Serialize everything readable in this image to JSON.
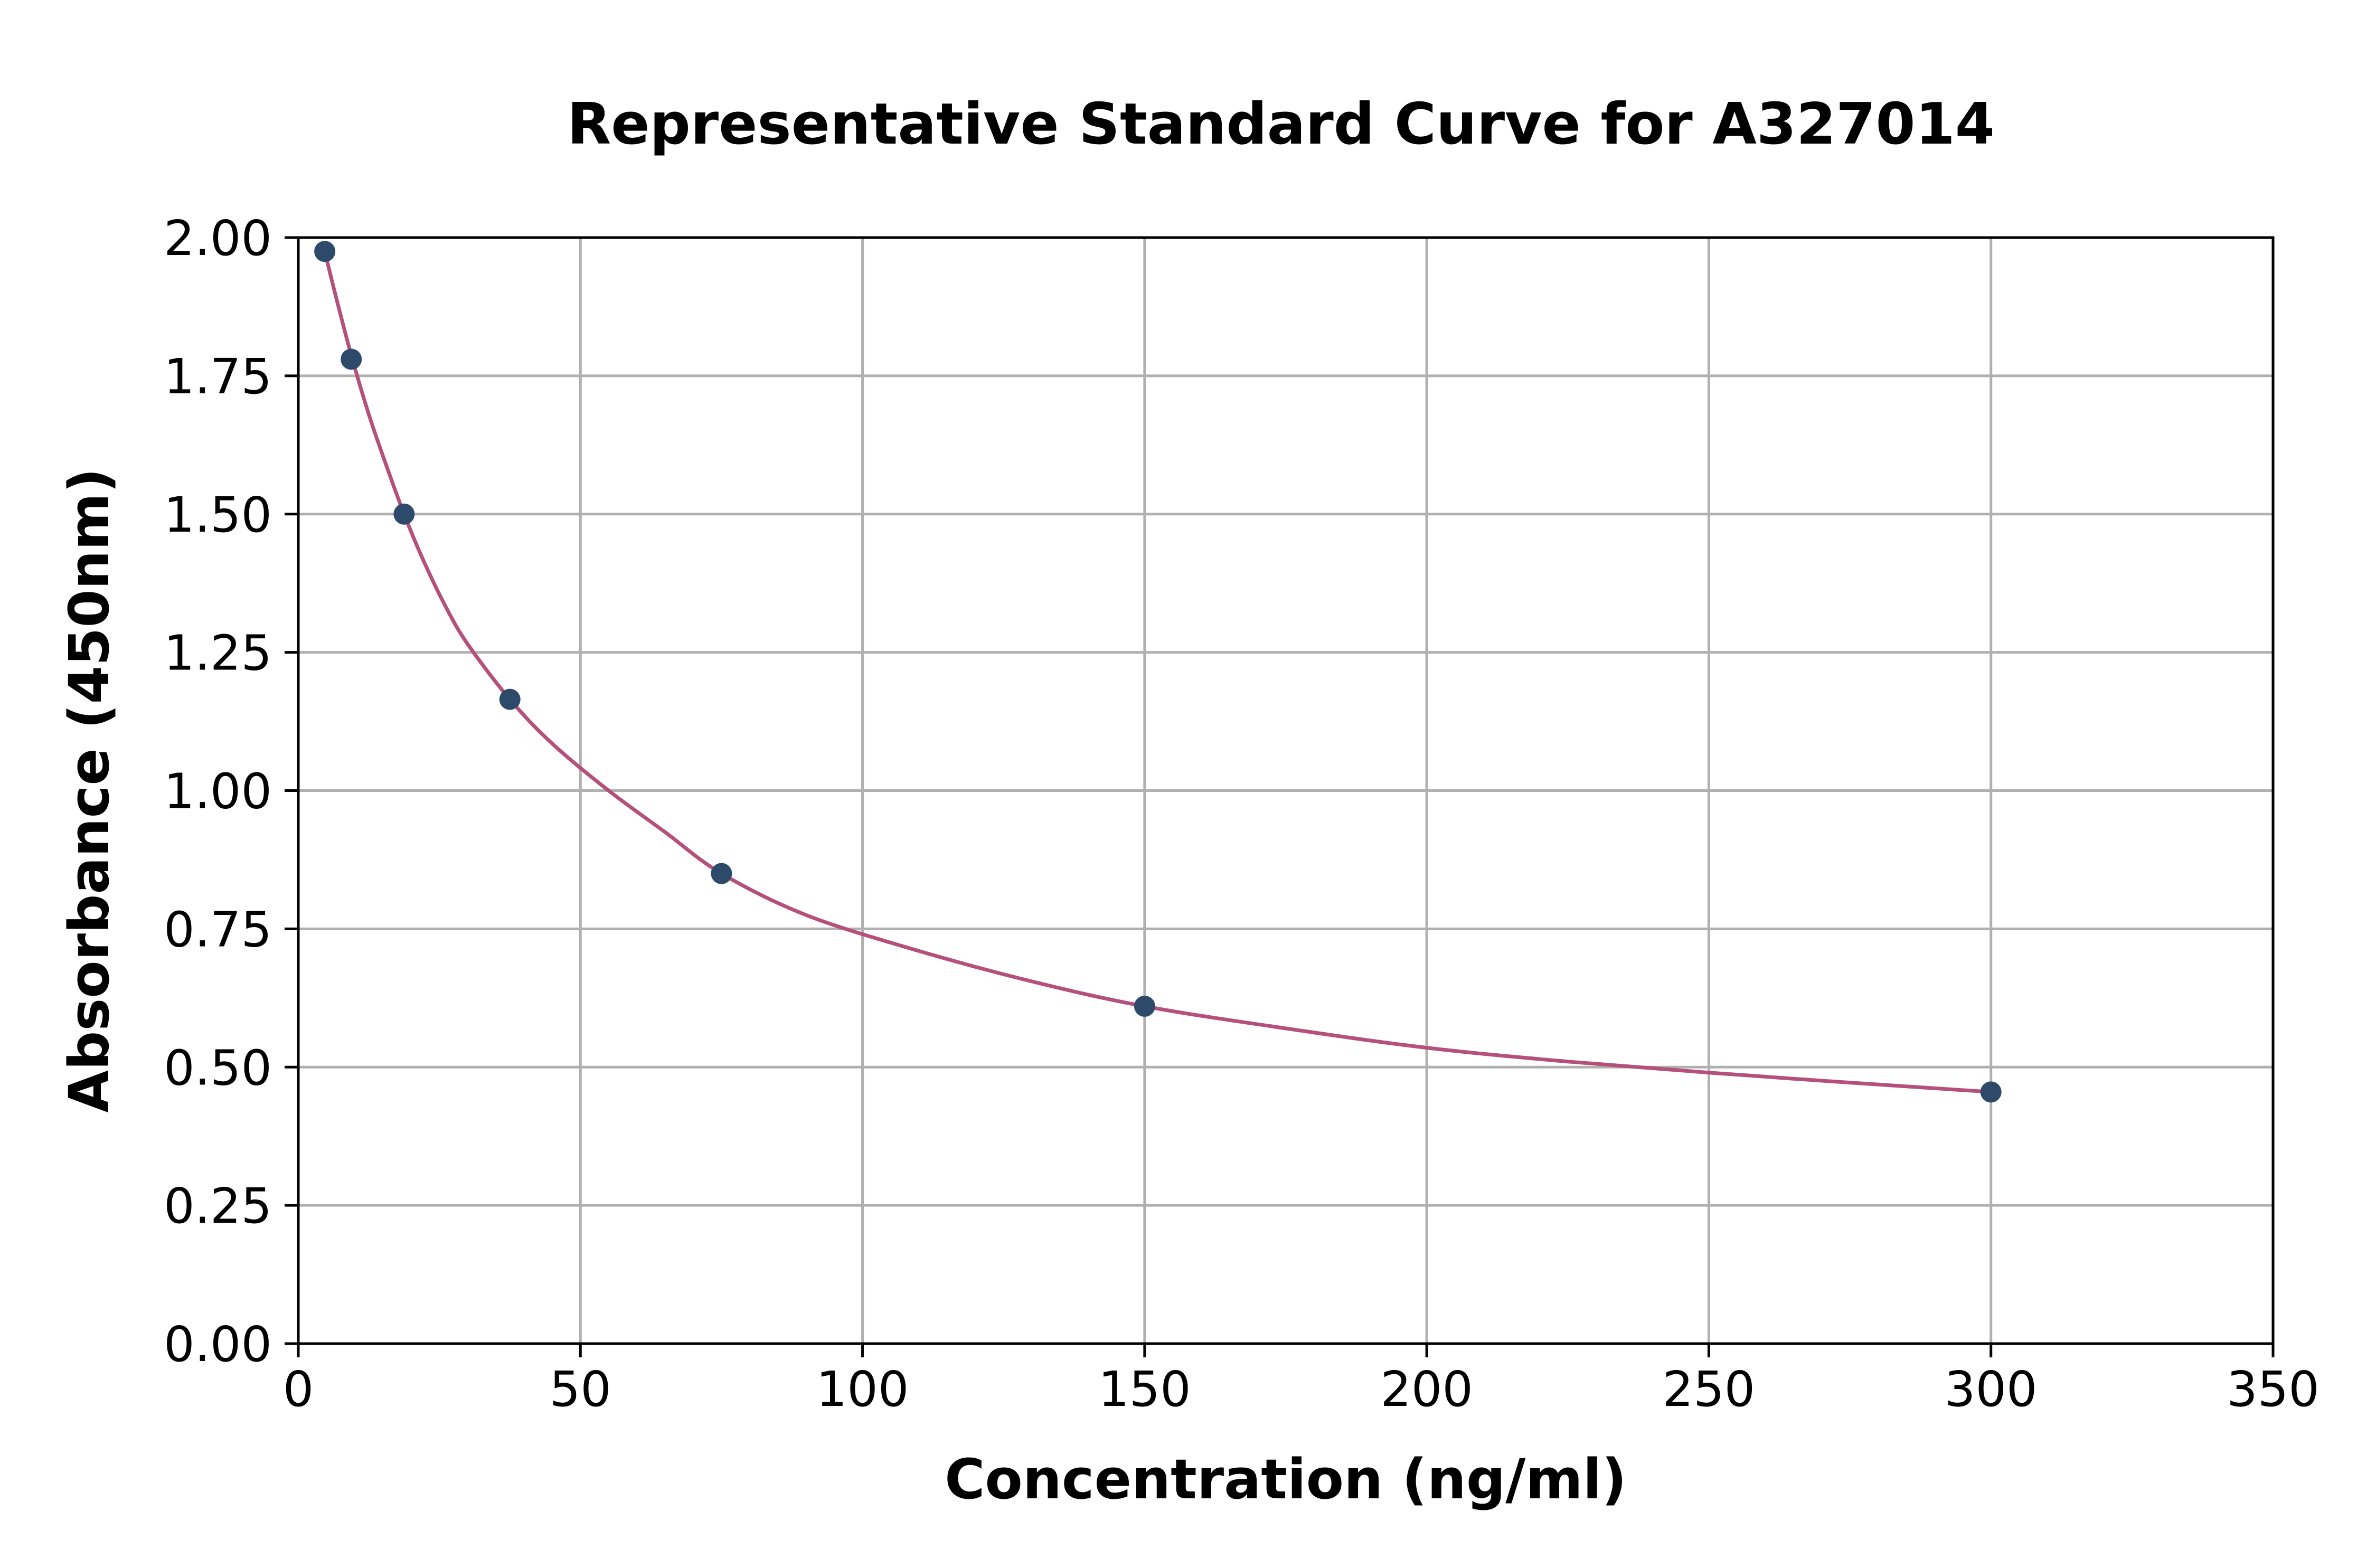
{
  "chart_data": {
    "type": "scatter",
    "title": "Representative Standard Curve for A327014",
    "xlabel": "Concentration (ng/ml)",
    "ylabel": "Absorbance (450nm)",
    "xlim": [
      0,
      350
    ],
    "ylim": [
      0,
      2.0
    ],
    "xticks": [
      0,
      50,
      100,
      150,
      200,
      250,
      300,
      350
    ],
    "xtick_labels": [
      "0",
      "50",
      "100",
      "150",
      "200",
      "250",
      "300",
      "350"
    ],
    "yticks": [
      0,
      0.25,
      0.5,
      0.75,
      1.0,
      1.25,
      1.5,
      1.75,
      2.0
    ],
    "ytick_labels": [
      "0.00",
      "0.25",
      "0.50",
      "0.75",
      "1.00",
      "1.25",
      "1.50",
      "1.75",
      "2.00"
    ],
    "grid": true,
    "series": [
      {
        "kind": "points",
        "color": "#2e4a6b",
        "x": [
          4.69,
          9.38,
          18.75,
          37.5,
          75,
          150,
          300
        ],
        "y": [
          1.975,
          1.78,
          1.5,
          1.165,
          0.85,
          0.61,
          0.455
        ]
      },
      {
        "kind": "fit-curve",
        "color": "#b5507a",
        "x": [
          4.69,
          6,
          8,
          10,
          12.5,
          15,
          18.75,
          22,
          26,
          30,
          37.5,
          45,
          55,
          65,
          75,
          90,
          110,
          130,
          150,
          175,
          200,
          225,
          250,
          275,
          300
        ],
        "y": [
          1.975,
          1.92,
          1.84,
          1.765,
          1.68,
          1.605,
          1.5,
          1.42,
          1.335,
          1.265,
          1.165,
          1.085,
          1.0,
          0.925,
          0.85,
          0.775,
          0.71,
          0.655,
          0.61,
          0.57,
          0.535,
          0.51,
          0.49,
          0.472,
          0.455
        ]
      }
    ]
  }
}
